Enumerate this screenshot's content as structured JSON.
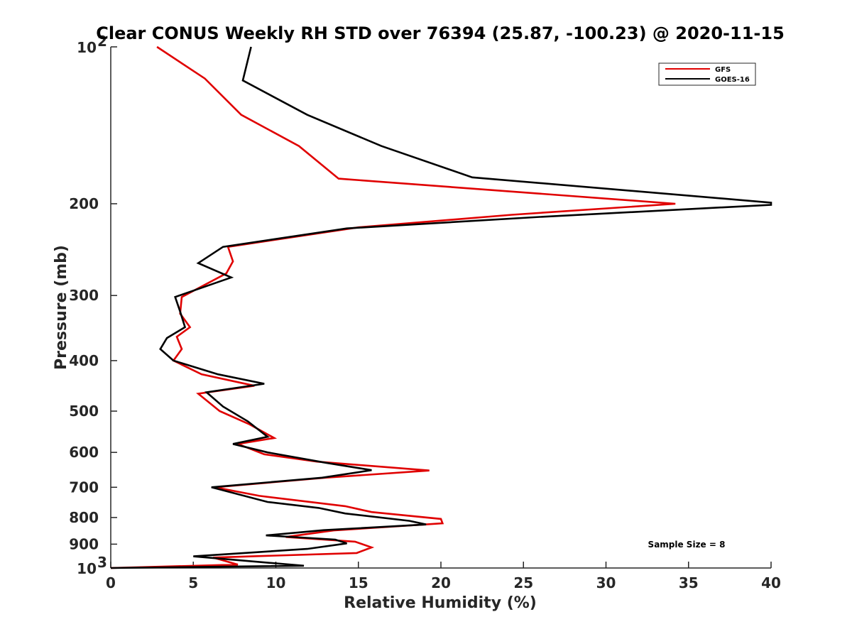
{
  "chart_data": {
    "type": "line",
    "title": "Clear CONUS Weekly RH STD over 76394 (25.87, -100.23) @ 2020-11-15",
    "xlabel": "Relative Humidity (%)",
    "ylabel": "Pressure (mb)",
    "xlim": [
      0,
      40
    ],
    "ylim": [
      100,
      1000
    ],
    "y_scale": "log",
    "y_reversed": true,
    "grid": false,
    "legend_position": "top-right",
    "x_ticks": [
      {
        "value": 0,
        "label": "0"
      },
      {
        "value": 5,
        "label": "5"
      },
      {
        "value": 10,
        "label": "10"
      },
      {
        "value": 15,
        "label": "15"
      },
      {
        "value": 20,
        "label": "20"
      },
      {
        "value": 25,
        "label": "25"
      },
      {
        "value": 30,
        "label": "30"
      },
      {
        "value": 35,
        "label": "35"
      },
      {
        "value": 40,
        "label": "40"
      }
    ],
    "y_ticks": [
      {
        "value": 100,
        "base": "10",
        "exp": "2"
      },
      {
        "value": 200,
        "label": "200"
      },
      {
        "value": 300,
        "label": "300"
      },
      {
        "value": 400,
        "label": "400"
      },
      {
        "value": 500,
        "label": "500"
      },
      {
        "value": 600,
        "label": "600"
      },
      {
        "value": 700,
        "label": "700"
      },
      {
        "value": 800,
        "label": "800"
      },
      {
        "value": 900,
        "label": "900"
      },
      {
        "value": 1000,
        "base": "10",
        "exp": "3"
      }
    ],
    "annotation": "Sample Size = 8",
    "series": [
      {
        "name": "GFS",
        "color": "#e00000",
        "points": [
          [
            2.8,
            100
          ],
          [
            5.7,
            115
          ],
          [
            7.9,
            135
          ],
          [
            11.4,
            155
          ],
          [
            13.8,
            179
          ],
          [
            34.2,
            200
          ],
          [
            24.3,
            210
          ],
          [
            15,
            222
          ],
          [
            7.1,
            242
          ],
          [
            7.4,
            258
          ],
          [
            7.0,
            272
          ],
          [
            4.3,
            302
          ],
          [
            4.2,
            325
          ],
          [
            4.8,
            345
          ],
          [
            4.0,
            360
          ],
          [
            4.3,
            380
          ],
          [
            3.8,
            400
          ],
          [
            5.5,
            425
          ],
          [
            8.7,
            447
          ],
          [
            5.3,
            463
          ],
          [
            6.6,
            500
          ],
          [
            8.4,
            530
          ],
          [
            9.9,
            563
          ],
          [
            7.7,
            578
          ],
          [
            9.3,
            605
          ],
          [
            12.5,
            625
          ],
          [
            19.3,
            650
          ],
          [
            13,
            671
          ],
          [
            6.3,
            700
          ],
          [
            9.0,
            727
          ],
          [
            14.2,
            761
          ],
          [
            15.8,
            781
          ],
          [
            20.0,
            805
          ],
          [
            20.1,
            821
          ],
          [
            13.5,
            847
          ],
          [
            10.6,
            872
          ],
          [
            14.8,
            890
          ],
          [
            15.8,
            913
          ],
          [
            14.9,
            936
          ],
          [
            6.2,
            955
          ],
          [
            7.7,
            985
          ],
          [
            0,
            1000
          ]
        ]
      },
      {
        "name": "GOES-16",
        "color": "#000000",
        "points": [
          [
            8.5,
            100
          ],
          [
            8.0,
            116
          ],
          [
            11.9,
            135
          ],
          [
            16.4,
            155
          ],
          [
            21.9,
            178
          ],
          [
            40,
            199
          ],
          [
            40,
            201
          ],
          [
            26,
            212
          ],
          [
            14.3,
            223
          ],
          [
            6.8,
            242
          ],
          [
            5.3,
            260
          ],
          [
            7.3,
            277
          ],
          [
            3.9,
            302
          ],
          [
            4.2,
            322
          ],
          [
            4.5,
            345
          ],
          [
            3.4,
            362
          ],
          [
            3.0,
            380
          ],
          [
            3.8,
            400
          ],
          [
            6.5,
            425
          ],
          [
            9.3,
            443
          ],
          [
            5.8,
            460
          ],
          [
            6.8,
            490
          ],
          [
            8.3,
            523
          ],
          [
            9.5,
            560
          ],
          [
            7.4,
            578
          ],
          [
            9.5,
            600
          ],
          [
            13,
            628
          ],
          [
            15.8,
            649
          ],
          [
            12.8,
            671
          ],
          [
            6.1,
            700
          ],
          [
            9.5,
            747
          ],
          [
            12.6,
            767
          ],
          [
            14.2,
            786
          ],
          [
            18.1,
            812
          ],
          [
            19.1,
            825
          ],
          [
            12.9,
            846
          ],
          [
            9.4,
            866
          ],
          [
            13.6,
            882
          ],
          [
            14.3,
            897
          ],
          [
            11.9,
            919
          ],
          [
            5.0,
            950
          ],
          [
            11.7,
            990
          ],
          [
            0,
            1000
          ]
        ]
      }
    ]
  }
}
